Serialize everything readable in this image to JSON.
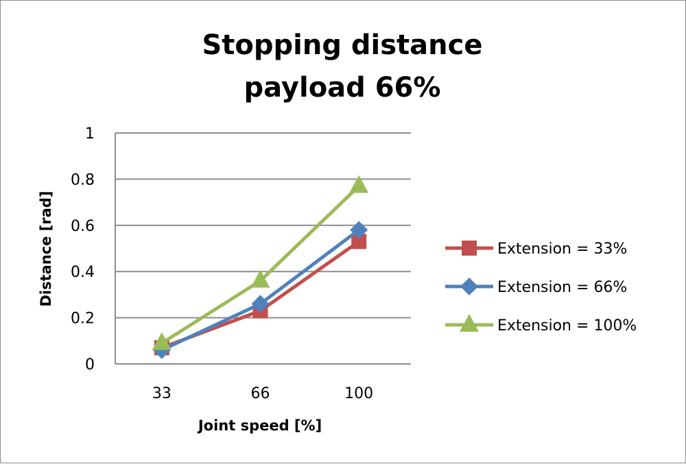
{
  "chart_data": {
    "type": "line",
    "title": "Stopping distance",
    "subtitle": "payload 66%",
    "xlabel": "Joint speed [%]",
    "ylabel": "Distance [rad]",
    "categories": [
      "33",
      "66",
      "100"
    ],
    "ylim": [
      0,
      1
    ],
    "yticks": [
      "0",
      "0.2",
      "0.4",
      "0.6",
      "0.8",
      "1"
    ],
    "grid": true,
    "legend_position": "right",
    "series": [
      {
        "name": "Extension = 33%",
        "color": "#c0504d",
        "marker": "square",
        "values": [
          0.07,
          0.23,
          0.53
        ]
      },
      {
        "name": "Extension = 66%",
        "color": "#4f81bd",
        "marker": "diamond",
        "values": [
          0.06,
          0.26,
          0.58
        ]
      },
      {
        "name": "Extension = 100%",
        "color": "#9bbb59",
        "marker": "triangle",
        "values": [
          0.09,
          0.36,
          0.77
        ]
      }
    ]
  }
}
